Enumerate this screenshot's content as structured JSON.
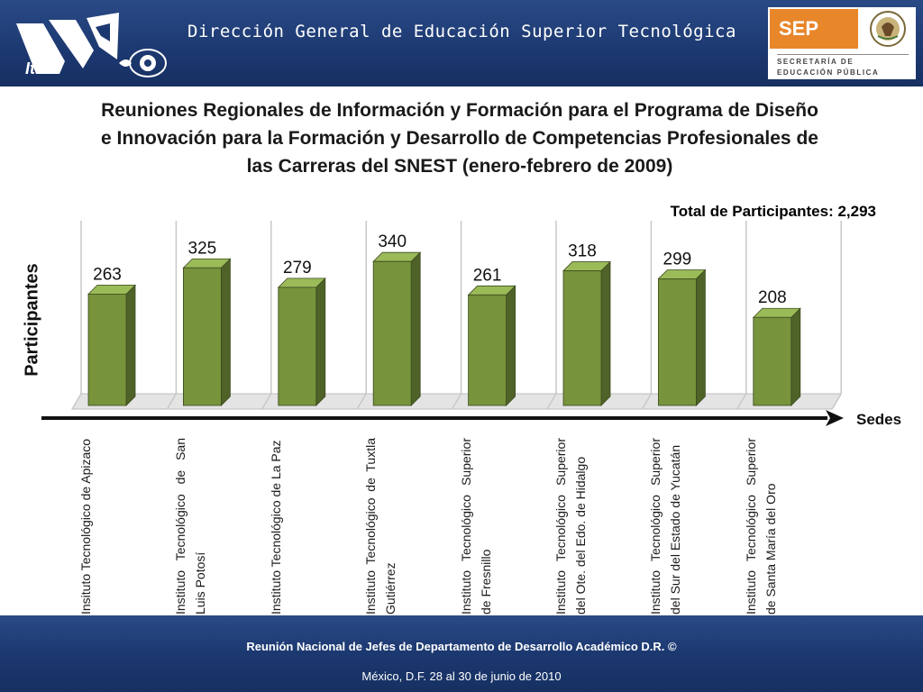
{
  "header": {
    "title": "Dirección General de Educación Superior Tecnológica",
    "left_logo_text": "It",
    "sep_logo": {
      "abbr": "SEP",
      "subtitle": "SECRETARÍA DE EDUCACIÓN PÚBLICA"
    }
  },
  "colors": {
    "header_bg": "#1c3870",
    "bar_front": "#77933c",
    "bar_side": "#4f6228",
    "bar_top": "#9bbb59"
  },
  "chart_data": {
    "type": "bar",
    "title": "Reuniones Regionales de Información y Formación para el Programa de Diseño e Innovación para la Formación y Desarrollo de Competencias Profesionales de las Carreras del SNEST (enero-febrero de 2009)",
    "annotation": "Total de Participantes: 2,293",
    "ylabel": "Participantes",
    "xlabel": "Sedes",
    "categories": [
      "Insituto Tecnológico de Apizaco",
      "Instituto Tecnológico de San Luis Potosí",
      "Instituto Tecnológico de La Paz",
      "Instituto Tecnológico de Tuxtla Gutiérrez",
      "Instituto Tecnológico Superior de Fresnillo",
      "Instituto Tecnológico Superior del Ote. del Edo. de Hidalgo",
      "Instituto Tecnológico Superior del Sur del Estado de Yucatán",
      "Instituto Tecnológico Superior de Santa María del Oro"
    ],
    "values": [
      263,
      325,
      279,
      340,
      261,
      318,
      299,
      208
    ],
    "value_labels": [
      "263",
      "325",
      "279",
      "340",
      "261",
      "318",
      "299",
      "208"
    ],
    "ylim": [
      0,
      400
    ],
    "grid": true,
    "style": "3d-column"
  },
  "footer": {
    "line1": "Reunión Nacional de Jefes de Departamento de Desarrollo Académico D.R. ©",
    "line2": "México, D.F.  28 al 30 de junio de 2010"
  }
}
